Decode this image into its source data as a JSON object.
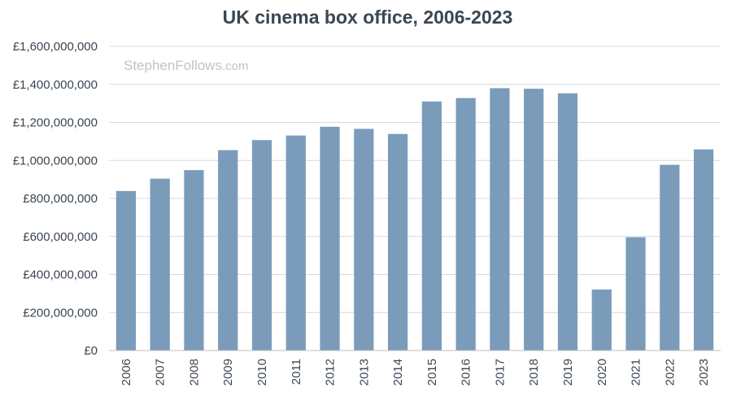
{
  "chart_data": {
    "type": "bar",
    "title": "UK cinema box office, 2006-2023",
    "xlabel": "",
    "ylabel": "",
    "categories": [
      "2006",
      "2007",
      "2008",
      "2009",
      "2010",
      "2011",
      "2012",
      "2013",
      "2014",
      "2015",
      "2016",
      "2017",
      "2018",
      "2019",
      "2020",
      "2021",
      "2022",
      "2023"
    ],
    "values": [
      839000000,
      904000000,
      949000000,
      1054000000,
      1107000000,
      1131000000,
      1177000000,
      1166000000,
      1139000000,
      1310000000,
      1328000000,
      1380000000,
      1377000000,
      1353000000,
      321000000,
      596000000,
      977000000,
      1058000000
    ],
    "ylim": [
      0,
      1600000000
    ],
    "yticks": [
      0,
      200000000,
      400000000,
      600000000,
      800000000,
      1000000000,
      1200000000,
      1400000000,
      1600000000
    ],
    "ytick_labels": [
      "£0",
      "£200,000,000",
      "£400,000,000",
      "£600,000,000",
      "£800,000,000",
      "£1,000,000,000",
      "£1,200,000,000",
      "£1,400,000,000",
      "£1,600,000,000"
    ],
    "grid": true,
    "legend": "none",
    "bar_color": "#7a9cba"
  },
  "watermark": {
    "part1": "StephenFollows",
    "part2": ".com"
  }
}
